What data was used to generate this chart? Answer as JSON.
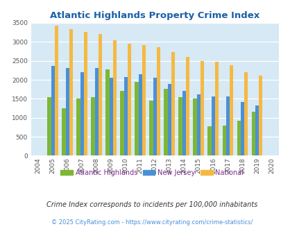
{
  "title": "Atlantic Highlands Property Crime Index",
  "years": [
    2004,
    2005,
    2006,
    2007,
    2008,
    2009,
    2010,
    2011,
    2012,
    2013,
    2014,
    2015,
    2016,
    2017,
    2018,
    2019,
    2020
  ],
  "atlantic_highlands": [
    0,
    1550,
    1250,
    1500,
    1550,
    2280,
    1700,
    1950,
    1450,
    1760,
    1550,
    1510,
    780,
    800,
    930,
    1160,
    0
  ],
  "new_jersey": [
    0,
    2360,
    2320,
    2210,
    2320,
    2060,
    2070,
    2150,
    2050,
    1890,
    1710,
    1620,
    1560,
    1560,
    1410,
    1320,
    0
  ],
  "national": [
    0,
    3420,
    3340,
    3260,
    3210,
    3040,
    2960,
    2920,
    2860,
    2730,
    2600,
    2500,
    2470,
    2380,
    2210,
    2110,
    0
  ],
  "color_ah": "#7db735",
  "color_nj": "#4a90d9",
  "color_nat": "#f5b942",
  "bg_color": "#d6e9f5",
  "title_color": "#1a5fa8",
  "legend_label_color": "#7b2d8b",
  "subtitle": "Crime Index corresponds to incidents per 100,000 inhabitants",
  "subtitle_color": "#333333",
  "copyright": "© 2025 CityRating.com - https://www.cityrating.com/crime-statistics/",
  "copyright_color": "#4a90d9",
  "ylim": [
    0,
    3500
  ],
  "yticks": [
    0,
    500,
    1000,
    1500,
    2000,
    2500,
    3000,
    3500
  ],
  "bar_width": 0.25,
  "figsize": [
    4.06,
    3.3
  ],
  "dpi": 100
}
